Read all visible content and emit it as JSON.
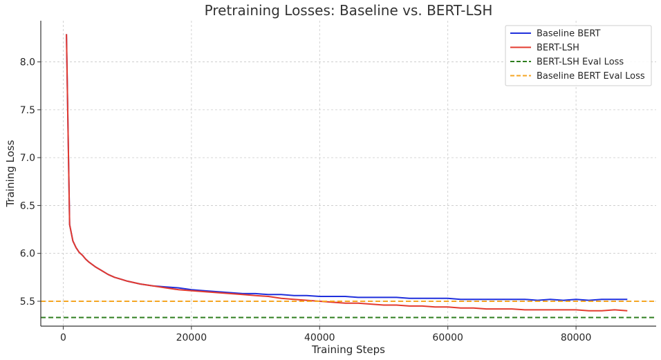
{
  "chart_data": {
    "type": "line",
    "title": "Pretraining Losses: Baseline vs. BERT-LSH",
    "xlabel": "Training Steps",
    "ylabel": "Training Loss",
    "xlim": [
      -3500,
      92500
    ],
    "ylim": [
      5.24,
      8.43
    ],
    "xticks": [
      0,
      20000,
      40000,
      60000,
      80000
    ],
    "yticks": [
      5.5,
      6.0,
      6.5,
      7.0,
      7.5,
      8.0
    ],
    "grid": true,
    "legend_position": "top-right",
    "series": [
      {
        "name": "Baseline BERT",
        "color": "#1f2fdc",
        "style": "solid",
        "x": [
          500,
          1000,
          1500,
          2000,
          2500,
          3000,
          3500,
          4000,
          5000,
          6000,
          7000,
          8000,
          9000,
          10000,
          12000,
          14000,
          16000,
          18000,
          20000,
          22000,
          24000,
          26000,
          28000,
          30000,
          32000,
          34000,
          36000,
          38000,
          40000,
          42000,
          44000,
          46000,
          48000,
          50000,
          52000,
          54000,
          56000,
          58000,
          60000,
          62000,
          64000,
          66000,
          68000,
          70000,
          72000,
          74000,
          76000,
          78000,
          80000,
          82000,
          84000,
          86000,
          88000
        ],
        "y": [
          8.29,
          6.3,
          6.13,
          6.06,
          6.01,
          5.98,
          5.94,
          5.91,
          5.86,
          5.82,
          5.78,
          5.75,
          5.73,
          5.71,
          5.68,
          5.66,
          5.65,
          5.64,
          5.62,
          5.61,
          5.6,
          5.59,
          5.58,
          5.58,
          5.57,
          5.57,
          5.56,
          5.56,
          5.55,
          5.55,
          5.55,
          5.54,
          5.54,
          5.54,
          5.54,
          5.53,
          5.53,
          5.53,
          5.53,
          5.52,
          5.52,
          5.52,
          5.52,
          5.52,
          5.52,
          5.51,
          5.52,
          5.51,
          5.52,
          5.51,
          5.52,
          5.52,
          5.52
        ]
      },
      {
        "name": "BERT-LSH",
        "color": "#e33a2e",
        "style": "solid",
        "x": [
          500,
          1000,
          1500,
          2000,
          2500,
          3000,
          3500,
          4000,
          5000,
          6000,
          7000,
          8000,
          9000,
          10000,
          12000,
          14000,
          16000,
          18000,
          20000,
          22000,
          24000,
          26000,
          28000,
          30000,
          32000,
          34000,
          36000,
          38000,
          40000,
          42000,
          44000,
          46000,
          48000,
          50000,
          52000,
          54000,
          56000,
          58000,
          60000,
          62000,
          64000,
          66000,
          68000,
          70000,
          72000,
          74000,
          76000,
          78000,
          80000,
          82000,
          84000,
          86000,
          88000
        ],
        "y": [
          8.29,
          6.3,
          6.13,
          6.06,
          6.01,
          5.98,
          5.94,
          5.91,
          5.86,
          5.82,
          5.78,
          5.75,
          5.73,
          5.71,
          5.68,
          5.66,
          5.64,
          5.62,
          5.61,
          5.6,
          5.59,
          5.58,
          5.57,
          5.56,
          5.55,
          5.53,
          5.52,
          5.51,
          5.5,
          5.49,
          5.48,
          5.48,
          5.47,
          5.46,
          5.46,
          5.45,
          5.45,
          5.44,
          5.44,
          5.43,
          5.43,
          5.42,
          5.42,
          5.42,
          5.41,
          5.41,
          5.41,
          5.41,
          5.41,
          5.4,
          5.4,
          5.41,
          5.4
        ]
      },
      {
        "name": "BERT-LSH Eval Loss",
        "color": "#2e7d1e",
        "style": "dashed",
        "y_constant": 5.33
      },
      {
        "name": "Baseline BERT Eval Loss",
        "color": "#f5a623",
        "style": "dashed",
        "y_constant": 5.5
      }
    ]
  }
}
